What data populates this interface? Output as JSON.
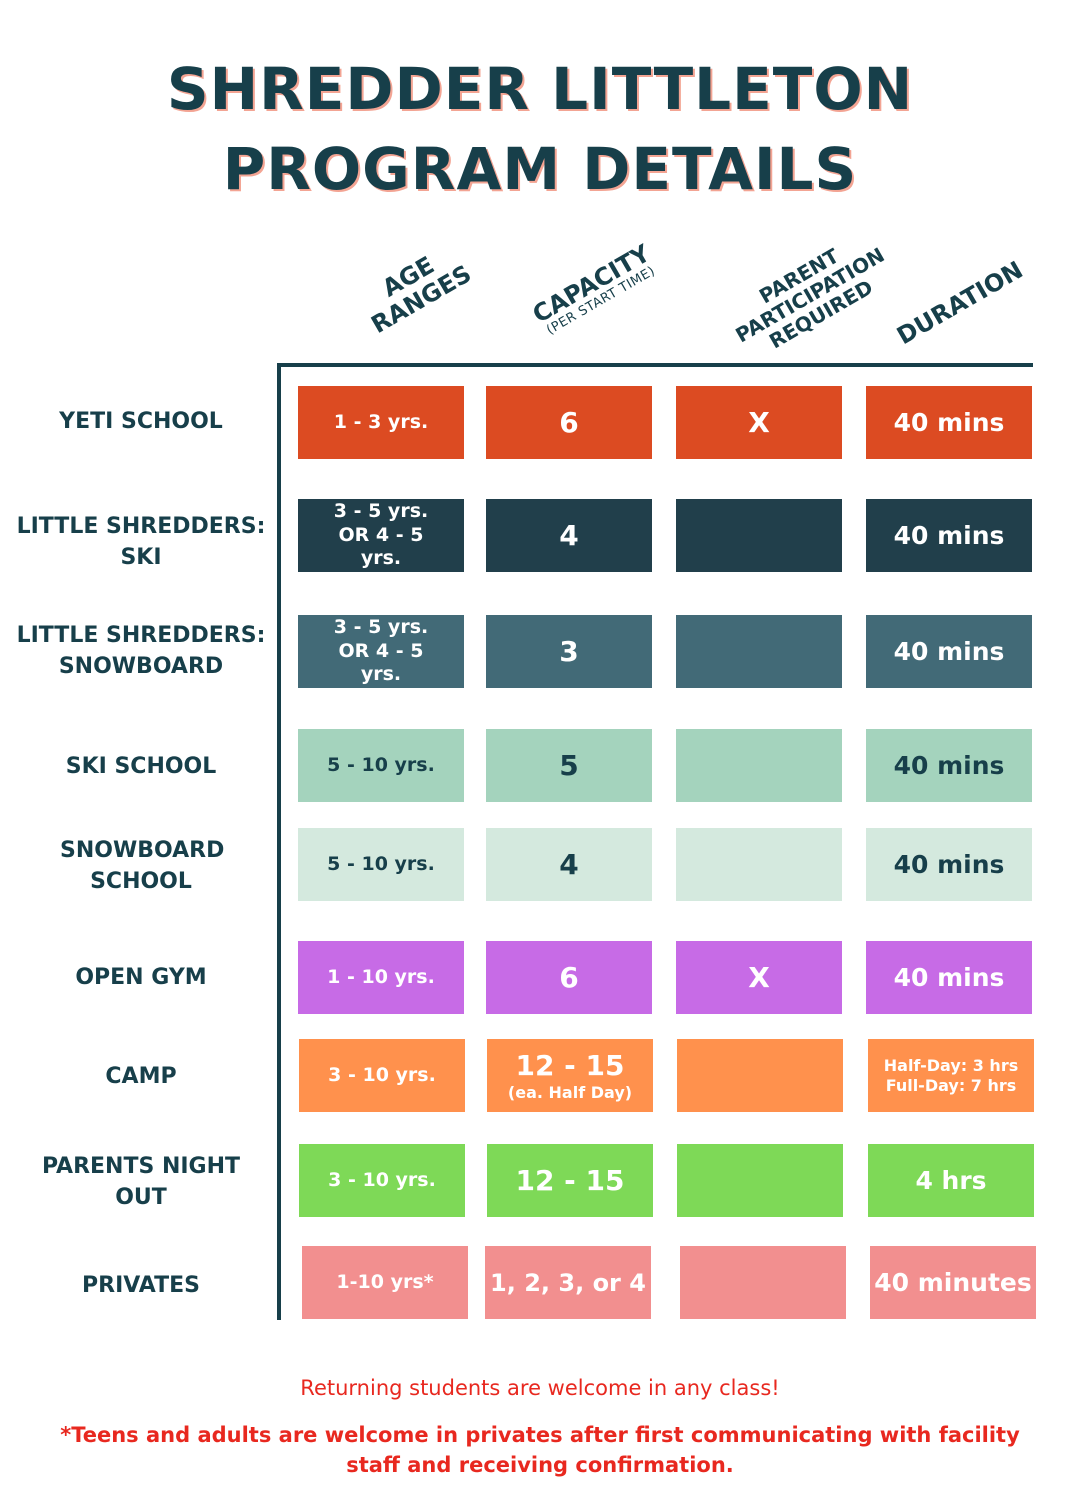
{
  "title": {
    "line1": "SHREDDER LITTLETON",
    "line2": "PROGRAM DETAILS"
  },
  "headers": {
    "age": "AGE RANGES",
    "capacity": "CAPACITY",
    "capacity_sub": "(PER START TIME)",
    "parent": "PARENT PARTICIPATION REQUIRED",
    "duration": "DURATION"
  },
  "rows": [
    {
      "label": "YETI SCHOOL",
      "age": "1 - 3 yrs.",
      "capacity": "6",
      "parent": "X",
      "duration": "40 mins",
      "bg": "#dc4b22",
      "fg": "#ffffff"
    },
    {
      "label": "LITTLE SHREDDERS: SKI",
      "age": "3 - 5 yrs. OR 4 - 5 yrs.",
      "capacity": "4",
      "parent": "",
      "duration": "40 mins",
      "bg": "#213f4b",
      "fg": "#ffffff"
    },
    {
      "label": "LITTLE SHREDDERS: SNOWBOARD",
      "age": "3 - 5 yrs. OR 4 - 5 yrs.",
      "capacity": "3",
      "parent": "",
      "duration": "40 mins",
      "bg": "#426a77",
      "fg": "#ffffff"
    },
    {
      "label": "SKI SCHOOL",
      "age": "5 - 10 yrs.",
      "capacity": "5",
      "parent": "",
      "duration": "40 mins",
      "bg": "#a4d3bd",
      "fg": "#173f4a"
    },
    {
      "label": "SNOWBOARD SCHOOL",
      "age": "5 - 10 yrs.",
      "capacity": "4",
      "parent": "",
      "duration": "40 mins",
      "bg": "#d4e9de",
      "fg": "#173f4a"
    },
    {
      "label": "OPEN GYM",
      "age": "1 - 10 yrs.",
      "capacity": "6",
      "parent": "X",
      "duration": "40 mins",
      "bg": "#c76be6",
      "fg": "#ffffff"
    },
    {
      "label": "CAMP",
      "age": "3 - 10 yrs.",
      "capacity": "12 - 15",
      "capacity_sub": "(ea. Half Day)",
      "parent": "",
      "duration": "Half-Day: 3 hrs Full-Day: 7 hrs",
      "bg": "#ff914d",
      "fg": "#ffffff"
    },
    {
      "label": "PARENTS NIGHT OUT",
      "age": "3 - 10 yrs.",
      "capacity": "12 - 15",
      "parent": "",
      "duration": "4 hrs",
      "bg": "#7ed957",
      "fg": "#ffffff"
    },
    {
      "label": "PRIVATES",
      "age": "1-10 yrs*",
      "capacity": "1, 2, 3, or 4",
      "parent": "",
      "duration": "40 minutes",
      "bg": "#f28f8f",
      "fg": "#ffffff"
    }
  ],
  "footer": {
    "line1": "Returning students are welcome in any class!",
    "line2": "*Teens and adults are welcome in privates after first communicating with facility staff and receiving confirmation."
  }
}
